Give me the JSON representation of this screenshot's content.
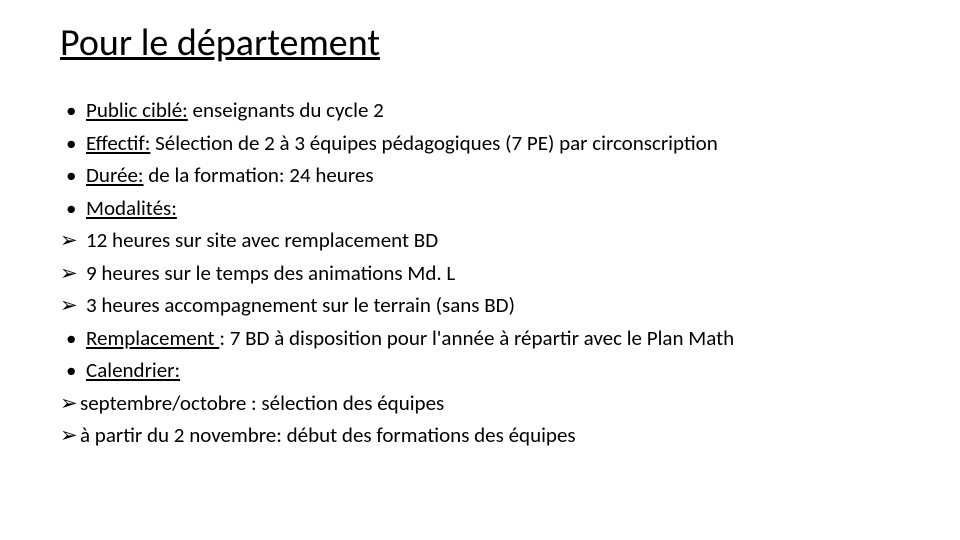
{
  "title": "Pour le département",
  "items": [
    {
      "marker": "dot",
      "label": "Public ciblé:",
      "text": " enseignants du cycle 2"
    },
    {
      "marker": "dot",
      "label": "Effectif:",
      "text": " Sélection de 2 à 3 équipes pédagogiques (7 PE) par circonscription"
    },
    {
      "marker": "dot",
      "label": "Durée:",
      "text": " de la formation: 24 heures"
    },
    {
      "marker": "dot",
      "label": "Modalités:",
      "text": ""
    },
    {
      "marker": "arrow",
      "label": "",
      "text": "12 heures sur site avec remplacement BD"
    },
    {
      "marker": "arrow",
      "label": "",
      "text": "9 heures sur le temps des animations Md. L"
    },
    {
      "marker": "arrow",
      "label": "",
      "text": "3 heures accompagnement sur le terrain (sans BD)"
    },
    {
      "marker": "dot",
      "label": "Remplacement ",
      "text": ": 7 BD à disposition pour l'année à répartir avec le Plan Math"
    },
    {
      "marker": "dot",
      "label": "Calendrier:",
      "text": ""
    },
    {
      "marker": "arrow-tight",
      "label": "",
      "text": "septembre/octobre : sélection des équipes"
    },
    {
      "marker": "arrow-tight",
      "label": "",
      "text": "à partir du 2 novembre: début des formations des équipes"
    }
  ],
  "markers": {
    "dot": "•",
    "arrow": "➢",
    "arrow-tight": "➢"
  },
  "colors": {
    "background": "#ffffff",
    "text": "#000000"
  },
  "typography": {
    "title_fontsize": 38,
    "body_fontsize": 21,
    "font_family": "Calibri"
  }
}
